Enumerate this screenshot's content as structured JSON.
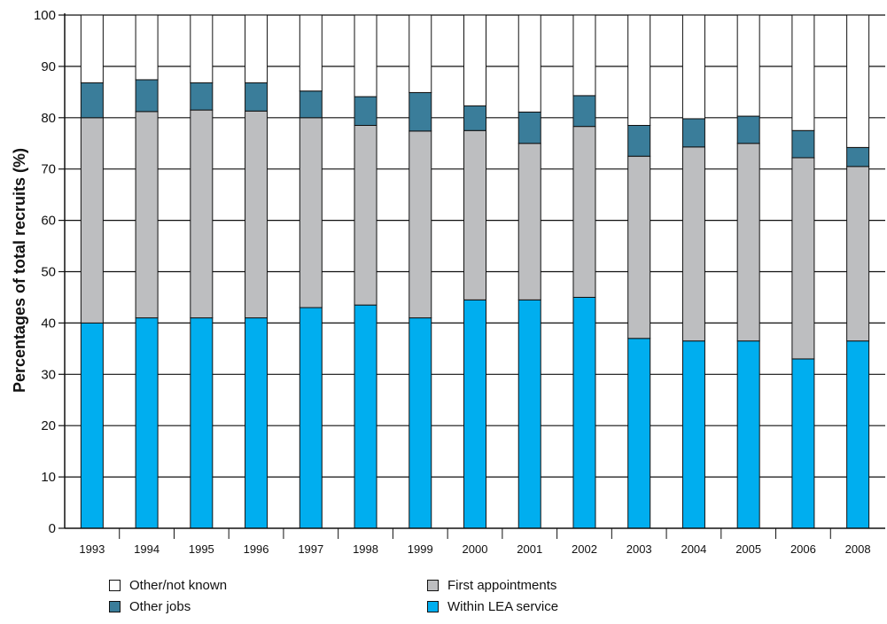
{
  "chart_data": {
    "type": "bar",
    "stacked": true,
    "ylabel": "Percentages of total recruits (%)",
    "xlabel": "",
    "ylim": [
      0,
      100
    ],
    "yticks": [
      0,
      10,
      20,
      30,
      40,
      50,
      60,
      70,
      80,
      90,
      100
    ],
    "grid": true,
    "categories": [
      "1993",
      "1994",
      "1995",
      "1996",
      "1997",
      "1998",
      "1999",
      "2000",
      "2001",
      "2002",
      "2003",
      "2004",
      "2005",
      "2006",
      "2008"
    ],
    "series": [
      {
        "name": "Within LEA service",
        "color": "#00AEEF",
        "values": [
          40,
          41,
          41,
          41,
          43,
          43.5,
          41,
          44.5,
          44.5,
          45,
          37,
          36.5,
          36.5,
          33,
          36.5
        ]
      },
      {
        "name": "First appointments",
        "color": "#BDBEC0",
        "values": [
          40,
          40.2,
          40.5,
          40.3,
          37,
          35,
          36.4,
          33,
          30.5,
          33.3,
          35.5,
          37.8,
          38.5,
          39.2,
          34
        ]
      },
      {
        "name": "Other jobs",
        "color": "#3A7D9A",
        "values": [
          6.8,
          6.2,
          5.3,
          5.5,
          5.2,
          5.6,
          7.5,
          4.8,
          6.1,
          6,
          6,
          5.5,
          5.3,
          5.3,
          3.7
        ]
      },
      {
        "name": "Other/not known",
        "color": "#FFFFFF",
        "values": [
          13.2,
          12.6,
          13.2,
          13.2,
          14.8,
          15.9,
          15.1,
          17.7,
          18.9,
          15.7,
          21.5,
          20.2,
          19.7,
          22.5,
          25.8
        ]
      }
    ],
    "legend": {
      "placement": "bottom",
      "order": [
        "Other/not known",
        "First appointments",
        "Other jobs",
        "Within LEA service"
      ]
    }
  }
}
